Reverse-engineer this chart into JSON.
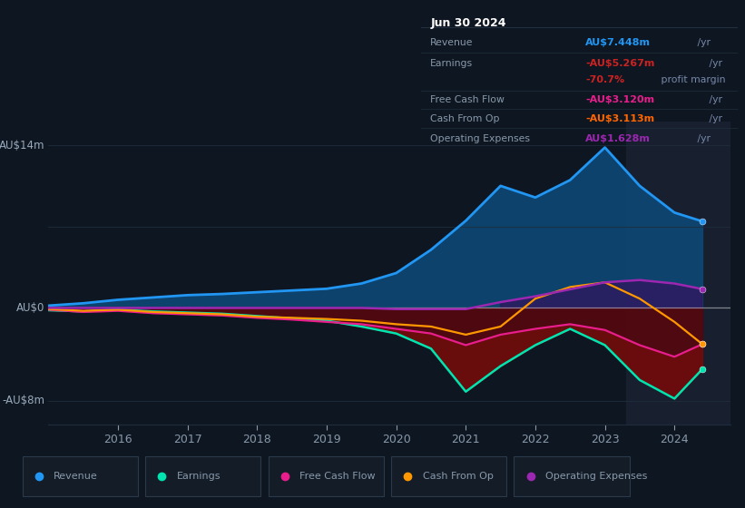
{
  "background_color": "#0e1621",
  "plot_bg_color": "#0e1621",
  "legend_bg_color": "#131c27",
  "box_bg_color": "#080d14",
  "years": [
    2015.0,
    2015.5,
    2016.0,
    2016.5,
    2017.0,
    2017.5,
    2018.0,
    2018.5,
    2019.0,
    2019.5,
    2020.0,
    2020.5,
    2021.0,
    2021.5,
    2022.0,
    2022.5,
    2023.0,
    2023.5,
    2024.0,
    2024.4
  ],
  "revenue": [
    0.2,
    0.4,
    0.7,
    0.9,
    1.1,
    1.2,
    1.35,
    1.5,
    1.65,
    2.1,
    3.0,
    5.0,
    7.5,
    10.5,
    9.5,
    11.0,
    13.8,
    10.5,
    8.2,
    7.45
  ],
  "earnings": [
    -0.2,
    -0.3,
    -0.15,
    -0.3,
    -0.4,
    -0.5,
    -0.7,
    -0.9,
    -1.1,
    -1.6,
    -2.2,
    -3.5,
    -7.2,
    -5.0,
    -3.2,
    -1.8,
    -3.2,
    -6.2,
    -7.8,
    -5.27
  ],
  "free_cash_flow": [
    -0.15,
    -0.35,
    -0.25,
    -0.45,
    -0.55,
    -0.65,
    -0.85,
    -1.0,
    -1.2,
    -1.4,
    -1.8,
    -2.2,
    -3.2,
    -2.3,
    -1.8,
    -1.4,
    -1.9,
    -3.2,
    -4.2,
    -3.12
  ],
  "cash_from_op": [
    -0.1,
    -0.25,
    -0.15,
    -0.35,
    -0.45,
    -0.55,
    -0.75,
    -0.85,
    -0.95,
    -1.1,
    -1.4,
    -1.6,
    -2.3,
    -1.6,
    0.8,
    1.8,
    2.2,
    0.8,
    -1.2,
    -3.113
  ],
  "operating_exp": [
    0.0,
    0.0,
    0.0,
    0.0,
    0.0,
    0.0,
    0.0,
    0.0,
    0.0,
    0.0,
    -0.1,
    -0.1,
    -0.1,
    0.5,
    1.0,
    1.6,
    2.2,
    2.4,
    2.1,
    1.628
  ],
  "revenue_line_color": "#2196f3",
  "revenue_fill_color": "#0d4a7a",
  "earnings_line_color": "#00e5b0",
  "earnings_fill_color": "#5a0808",
  "fcf_line_color": "#e91e8c",
  "fcf_fill_color": "#6b0028",
  "cop_line_color": "#ff9800",
  "opex_line_color": "#9c27b0",
  "opex_fill_color": "#3a0a5a",
  "highlight_x_start": 2023.3,
  "highlight_color": "#182030",
  "grid_color": "#1e2d3d",
  "zero_line_color": "#cccccc",
  "text_color": "#8899aa",
  "axis_label_color": "#99aabb",
  "xlim": [
    2015.0,
    2024.8
  ],
  "ylim": [
    -10,
    16
  ],
  "xticks": [
    2016,
    2017,
    2018,
    2019,
    2020,
    2021,
    2022,
    2023,
    2024
  ],
  "ytick_vals": [
    -8,
    0,
    14
  ],
  "ytick_labels": [
    "-AU$8m",
    "AU$0",
    "AU$14m"
  ],
  "legend_items": [
    {
      "label": "Revenue",
      "color": "#2196f3"
    },
    {
      "label": "Earnings",
      "color": "#00e5b0"
    },
    {
      "label": "Free Cash Flow",
      "color": "#e91e8c"
    },
    {
      "label": "Cash From Op",
      "color": "#ff9800"
    },
    {
      "label": "Operating Expenses",
      "color": "#9c27b0"
    }
  ],
  "info_box": {
    "date": "Jun 30 2024",
    "rows": [
      {
        "label": "Revenue",
        "value": "AU$7.448m",
        "value_color": "#2196f3",
        "suffix": " /yr"
      },
      {
        "label": "Earnings",
        "value": "-AU$5.267m",
        "value_color": "#cc2222",
        "suffix": " /yr"
      },
      {
        "label": "",
        "value": "-70.7%",
        "value_color": "#cc2222",
        "suffix": " profit margin"
      },
      {
        "label": "Free Cash Flow",
        "value": "-AU$3.120m",
        "value_color": "#e91e8c",
        "suffix": " /yr"
      },
      {
        "label": "Cash From Op",
        "value": "-AU$3.113m",
        "value_color": "#ff6600",
        "suffix": " /yr"
      },
      {
        "label": "Operating Expenses",
        "value": "AU$1.628m",
        "value_color": "#9c27b0",
        "suffix": " /yr"
      }
    ]
  }
}
